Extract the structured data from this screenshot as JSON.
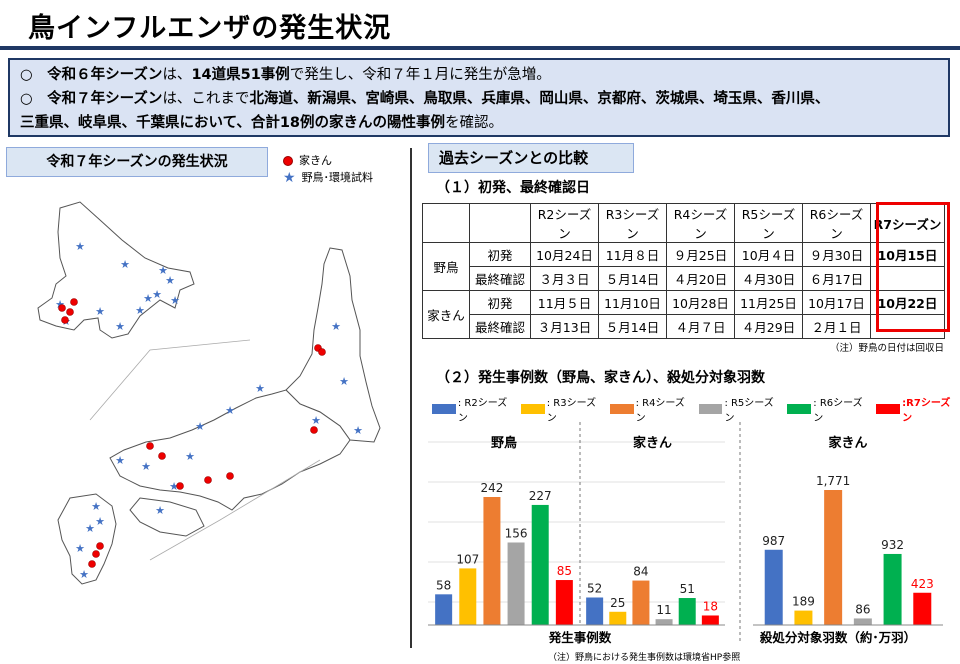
{
  "title": "鳥インフルエンザの発生状況",
  "summary": {
    "line1": [
      {
        "t": "○　",
        "b": false
      },
      {
        "t": "令和６年シーズン",
        "b": true
      },
      {
        "t": "は、",
        "b": false
      },
      {
        "t": "14道県51事例",
        "b": true
      },
      {
        "t": "で発生し、令和７年１月に発生が急増。",
        "b": false
      }
    ],
    "line2": [
      {
        "t": "○　",
        "b": false
      },
      {
        "t": "令和７年シーズン",
        "b": true
      },
      {
        "t": "は、これまで",
        "b": false
      },
      {
        "t": "北海道、新潟県、宮崎県、鳥取県、兵庫県、岡山県、京都府、茨城県、埼玉県、香川県、",
        "b": true
      }
    ],
    "line3": [
      {
        "t": "三重県、岐阜県、千葉県において、合計18例の家きんの陽性事例",
        "b": true
      },
      {
        "t": "を確認。",
        "b": false
      }
    ]
  },
  "map_section": {
    "label": "令和７年シーズンの発生状況",
    "legend_poultry": "家きん",
    "legend_wild": "野鳥･環境試料"
  },
  "comparison": {
    "label": "過去シーズンとの比較",
    "sub1": "（１）初発、最終確認日",
    "table": {
      "headers": [
        "",
        "",
        "R2シーズン",
        "R3シーズン",
        "R4シーズン",
        "R5シーズン",
        "R6シーズン",
        "R7シーズン"
      ],
      "groups": [
        {
          "name": "野鳥",
          "rows": [
            {
              "label": "初発",
              "values": [
                "10月24日",
                "11月８日",
                "９月25日",
                "10月４日",
                "９月30日",
                "10月15日"
              ]
            },
            {
              "label": "最終確認",
              "values": [
                "３月３日",
                "５月14日",
                "４月20日",
                "４月30日",
                "６月17日",
                ""
              ]
            }
          ]
        },
        {
          "name": "家きん",
          "rows": [
            {
              "label": "初発",
              "values": [
                "11月５日",
                "11月10日",
                "10月28日",
                "11月25日",
                "10月17日",
                "10月22日"
              ]
            },
            {
              "label": "最終確認",
              "values": [
                "３月13日",
                "５月14日",
                "４月７日",
                "４月29日",
                "２月１日",
                ""
              ]
            }
          ]
        }
      ]
    },
    "note1": "（注）野鳥の日付は回収日",
    "sub2": "（２）発生事例数（野鳥、家きん）、殺処分対象羽数",
    "note2": "（注）野鳥における発生事例数は環境省HP参照"
  },
  "series_legend": [
    {
      "name": ": R2シーズン",
      "color": "#4472c4"
    },
    {
      "name": ": R3シーズン",
      "color": "#ffc000"
    },
    {
      "name": ": R4シーズン",
      "color": "#ed7d31"
    },
    {
      "name": ": R5シーズン",
      "color": "#a5a5a5"
    },
    {
      "name": ": R6シーズン",
      "color": "#00b050"
    },
    {
      "name": ":R7シーズン",
      "color": "#ff0000"
    }
  ],
  "chart_data": [
    {
      "type": "bar",
      "title": "野鳥",
      "categories": [
        "R2",
        "R3",
        "R4",
        "R5",
        "R6",
        "R7"
      ],
      "values": [
        58,
        107,
        242,
        156,
        227,
        85
      ],
      "ylim": [
        0,
        300
      ]
    },
    {
      "type": "bar",
      "title": "家きん",
      "categories": [
        "R2",
        "R3",
        "R4",
        "R5",
        "R6",
        "R7"
      ],
      "values": [
        52,
        25,
        84,
        11,
        51,
        18
      ],
      "ylim": [
        0,
        300
      ],
      "xlabel": "発生事例数"
    },
    {
      "type": "bar",
      "title": "家きん",
      "categories": [
        "R2",
        "R3",
        "R4",
        "R5",
        "R6",
        "R7"
      ],
      "values": [
        987,
        189,
        1771,
        86,
        932,
        423
      ],
      "value_labels": [
        "987",
        "189",
        "1,771",
        "86",
        "932",
        "423"
      ],
      "xlabel": "殺処分対象羽数（約･万羽）"
    }
  ]
}
